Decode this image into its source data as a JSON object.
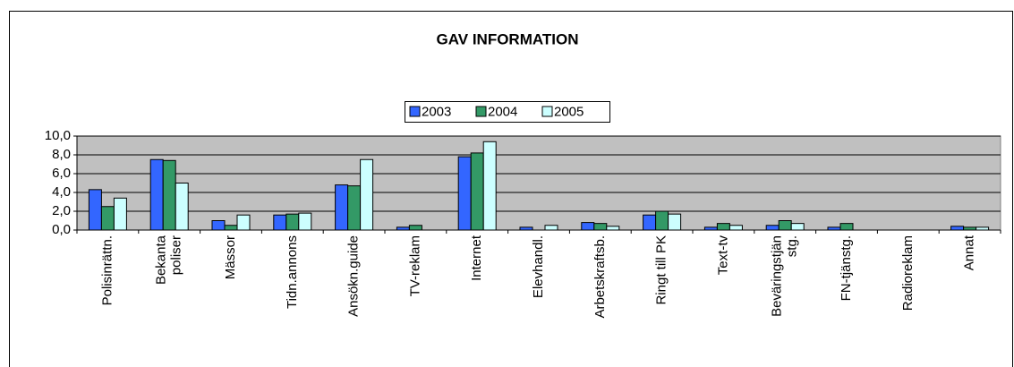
{
  "chart_data": {
    "type": "bar",
    "title": "GAV INFORMATION",
    "categories": [
      "Polisinrättn.",
      "Bekanta\npoliser",
      "Mässor",
      "Tidn.annons",
      "Ansökn.guide",
      "TV-reklam",
      "Internet",
      "Elevhandl.",
      "Arbetskraftsb.",
      "Ringt till PK",
      "Text-tv",
      "Beväringstjän\nstg.",
      "FN-tjänstg.",
      "Radioreklam",
      "Annat"
    ],
    "series": [
      {
        "name": "2003",
        "color": "#3366ff",
        "values": [
          4.3,
          7.5,
          1.0,
          1.6,
          4.8,
          0.3,
          7.8,
          0.3,
          0.8,
          1.6,
          0.3,
          0.5,
          0.3,
          0,
          0.4
        ]
      },
      {
        "name": "2004",
        "color": "#339966",
        "values": [
          2.5,
          7.4,
          0.5,
          1.7,
          4.7,
          0.5,
          8.2,
          0,
          0.7,
          2.0,
          0.7,
          1.0,
          0.7,
          0,
          0.3
        ]
      },
      {
        "name": "2005",
        "color": "#ccffff",
        "values": [
          3.4,
          5.0,
          1.6,
          1.8,
          7.5,
          0,
          9.4,
          0.5,
          0.4,
          1.7,
          0.5,
          0.7,
          0,
          0,
          0.3
        ]
      }
    ],
    "ylim": [
      0,
      10
    ],
    "yticks": [
      {
        "value": 0,
        "label": "0,0"
      },
      {
        "value": 2,
        "label": "2,0"
      },
      {
        "value": 4,
        "label": "4,0"
      },
      {
        "value": 6,
        "label": "6,0"
      },
      {
        "value": 8,
        "label": "8,0"
      },
      {
        "value": 10,
        "label": "10,0"
      }
    ],
    "grid": true,
    "legend": "top"
  }
}
